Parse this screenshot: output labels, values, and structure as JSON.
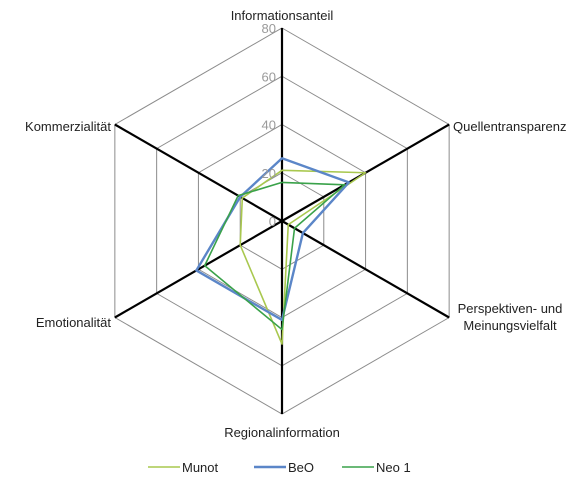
{
  "chart_data": {
    "type": "radar",
    "title": "",
    "rmax": 80,
    "ticks": [
      0,
      20,
      40,
      60,
      80
    ],
    "axes": [
      "Informationsanteil",
      "Quellentransparenz",
      "Perspektiven- und Meinungsvielfalt",
      "Regionalinformation",
      "Emotionalität",
      "Kommerzialität"
    ],
    "axis_label_lines": [
      [
        "Informationsanteil"
      ],
      [
        "Quellentransparenz"
      ],
      [
        "Perspektiven- und",
        "Meinungsvielfalt"
      ],
      [
        "Regionalinformation"
      ],
      [
        "Emotionalität"
      ],
      [
        "Kommerzialität"
      ]
    ],
    "series": [
      {
        "name": "Munot",
        "color": "#a9c84f",
        "values": [
          21,
          40,
          3,
          51,
          20,
          19
        ]
      },
      {
        "name": "BeO",
        "color": "#5b86c8",
        "values": [
          26,
          32,
          10,
          41,
          41,
          20
        ]
      },
      {
        "name": "Neo 1",
        "color": "#3aa24a",
        "values": [
          16,
          30,
          6,
          45,
          37,
          21
        ]
      }
    ],
    "legend": "bottom",
    "grid": true
  }
}
